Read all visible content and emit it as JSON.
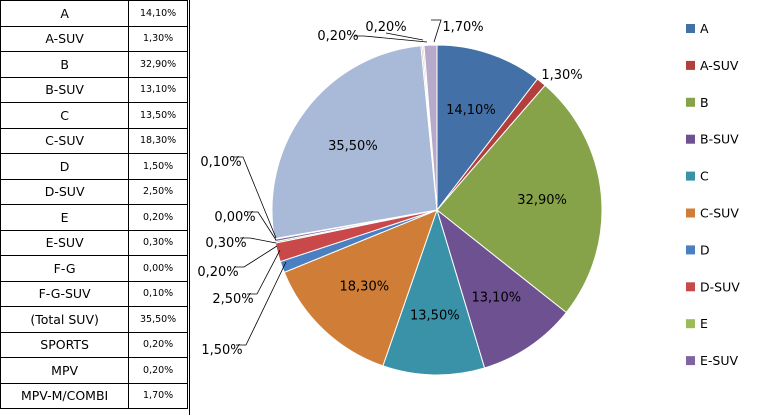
{
  "table": {
    "rows": [
      {
        "label": "A",
        "value": "14,10%"
      },
      {
        "label": "A-SUV",
        "value": "1,30%"
      },
      {
        "label": "B",
        "value": "32,90%"
      },
      {
        "label": "B-SUV",
        "value": "13,10%"
      },
      {
        "label": "C",
        "value": "13,50%"
      },
      {
        "label": "C-SUV",
        "value": "18,30%"
      },
      {
        "label": "D",
        "value": "1,50%"
      },
      {
        "label": "D-SUV",
        "value": "2,50%"
      },
      {
        "label": "E",
        "value": "0,20%"
      },
      {
        "label": "E-SUV",
        "value": "0,30%"
      },
      {
        "label": "F-G",
        "value": "0,00%"
      },
      {
        "label": "F-G-SUV",
        "value": "0,10%"
      },
      {
        "label": "(Total SUV)",
        "value": "35,50%"
      },
      {
        "label": "SPORTS",
        "value": "0,20%"
      },
      {
        "label": "MPV",
        "value": "0,20%"
      },
      {
        "label": "MPV-M/COMBI",
        "value": "1,70%"
      }
    ]
  },
  "chart_data": {
    "type": "pie",
    "title": "",
    "slices": [
      {
        "name": "A",
        "value": 14.1,
        "label": "14,10%",
        "color": "#4470a8"
      },
      {
        "name": "A-SUV",
        "value": 1.3,
        "label": "1,30%",
        "color": "#b23f3b"
      },
      {
        "name": "B",
        "value": 32.9,
        "label": "32,90%",
        "color": "#86a34a"
      },
      {
        "name": "B-SUV",
        "value": 13.1,
        "label": "13,10%",
        "color": "#6d5190"
      },
      {
        "name": "C",
        "value": 13.5,
        "label": "13,50%",
        "color": "#3a92a8"
      },
      {
        "name": "C-SUV",
        "value": 18.3,
        "label": "18,30%",
        "color": "#d07d37"
      },
      {
        "name": "D",
        "value": 1.5,
        "label": "1,50%",
        "color": "#4a7fc2"
      },
      {
        "name": "D-SUV",
        "value": 2.5,
        "label": "2,50%",
        "color": "#c9494a"
      },
      {
        "name": "E",
        "value": 0.2,
        "label": "0,20%",
        "color": "#9bbb59"
      },
      {
        "name": "E-SUV",
        "value": 0.3,
        "label": "0,30%",
        "color": "#8064a2"
      },
      {
        "name": "F-G",
        "value": 0.0,
        "label": "0,00%",
        "color": "#4bacc6"
      },
      {
        "name": "F-G-SUV",
        "value": 0.1,
        "label": "0,10%",
        "color": "#f79646"
      },
      {
        "name": "(Total SUV)",
        "value": 35.5,
        "label": "35,50%",
        "color": "#a9b9d8"
      },
      {
        "name": "SPORTS",
        "value": 0.2,
        "label": "0,20%",
        "color": "#d59b98"
      },
      {
        "name": "MPV",
        "value": 0.2,
        "label": "0,20%",
        "color": "#c6d6a4"
      },
      {
        "name": "MPV-M/COMBI",
        "value": 1.7,
        "label": "1,70%",
        "color": "#b7a9c9"
      }
    ],
    "legend": {
      "position": "right",
      "entries": [
        "A",
        "A-SUV",
        "B",
        "B-SUV",
        "C",
        "C-SUV",
        "D",
        "D-SUV",
        "E",
        "E-SUV"
      ]
    }
  }
}
